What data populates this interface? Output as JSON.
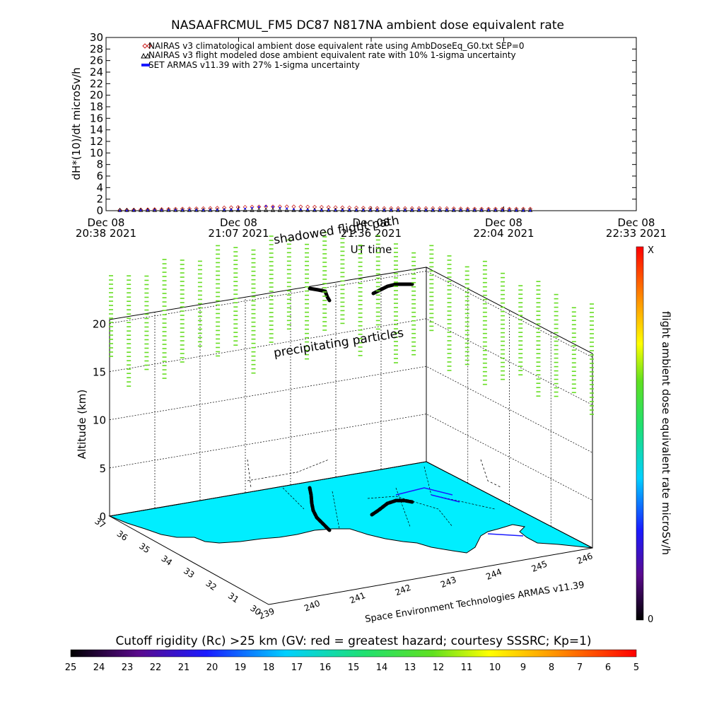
{
  "chart_data": [
    {
      "type": "scatter",
      "title": "NASAAFRCMUL_FM5 DC87 N817NA ambient dose equivalent rate",
      "xlabel": "UT time",
      "ylabel": "dH*(10)/dt microSv/h",
      "ylim": [
        0,
        30
      ],
      "y_ticks": [
        0,
        2,
        4,
        6,
        8,
        10,
        12,
        14,
        16,
        18,
        20,
        22,
        24,
        26,
        28,
        30
      ],
      "x_ticks": [
        {
          "line1": "Dec 08",
          "line2": "20:38 2021"
        },
        {
          "line1": "Dec 08",
          "line2": "21:07 2021"
        },
        {
          "line1": "Dec 08",
          "line2": "21:36 2021"
        },
        {
          "line1": "Dec 08",
          "line2": "22:04 2021"
        },
        {
          "line1": "Dec 08",
          "line2": "22:33 2021"
        }
      ],
      "xlim": [
        "Dec 08 20:38 2021",
        "Dec 08 22:33 2021"
      ],
      "grid": false,
      "legend_position": "top-left",
      "series": [
        {
          "name": "NAIRAS v3 climatological ambient dose equivalent rate using AmbDoseEq_G0.txt SEP=0",
          "marker": "diamond",
          "color": "#cc2222",
          "x_start": "20:41",
          "x_end": "22:10",
          "values_microSv_per_h": [
            0.1,
            0.2,
            0.3,
            0.4,
            0.6,
            0.7,
            0.7,
            0.6,
            0.5,
            0.4,
            0.4,
            0.4,
            0.3,
            0.3,
            0.3
          ]
        },
        {
          "name": "NAIRAS v3 flight modeled dose ambient equivalent rate with 10% 1-sigma uncertainty",
          "marker": "triangle",
          "color": "#000000",
          "x_start": "20:41",
          "x_end": "22:10",
          "values_microSv_per_h": [
            0.1,
            0.1,
            0.1,
            0.1,
            0.1,
            0.1,
            0.1,
            0.1,
            0.1,
            0.1,
            0.1,
            0.1,
            0.1,
            0.1,
            0.1
          ]
        },
        {
          "name": "SET ARMAS v11.39 with 27% 1-sigma uncertainty",
          "marker": "dot",
          "color": "#1a1aff",
          "x_start": "20:41",
          "x_end": "22:10",
          "values_microSv_per_h": [
            0.0,
            0.1,
            0.1,
            0.1,
            0.2,
            0.8,
            0.2,
            0.1,
            0.1,
            0.1,
            0.1,
            0.1,
            0.1,
            0.1,
            0.0
          ]
        }
      ]
    },
    {
      "type": "scatter",
      "ylabel": "Altitude (km)",
      "z_ticks": [
        0,
        5,
        10,
        15,
        20
      ],
      "x_ticks": [
        239,
        240,
        241,
        242,
        243,
        244,
        245,
        246
      ],
      "y_ticks": [
        30,
        31,
        32,
        33,
        34,
        35,
        36,
        37
      ],
      "annotations": [
        "shadowed flight path",
        "precipitating particles"
      ],
      "credit": "Space Environment Technologies ARMAS v11.39"
    },
    {
      "type": "heatmap",
      "colorbar_label": "flight ambient dose equivalent rate microSv/h",
      "colorbar_top": "X",
      "colorbar_bottom": "0",
      "rigidity_label": "Cutoff rigidity (Rc) >25 km (GV: red = greatest hazard; courtesy SSSRC; Kp=1)",
      "rigidity_ticks": [
        25,
        24,
        23,
        22,
        21,
        20,
        19,
        18,
        17,
        16,
        15,
        14,
        13,
        12,
        11,
        10,
        9,
        8,
        7,
        6,
        5
      ]
    }
  ]
}
